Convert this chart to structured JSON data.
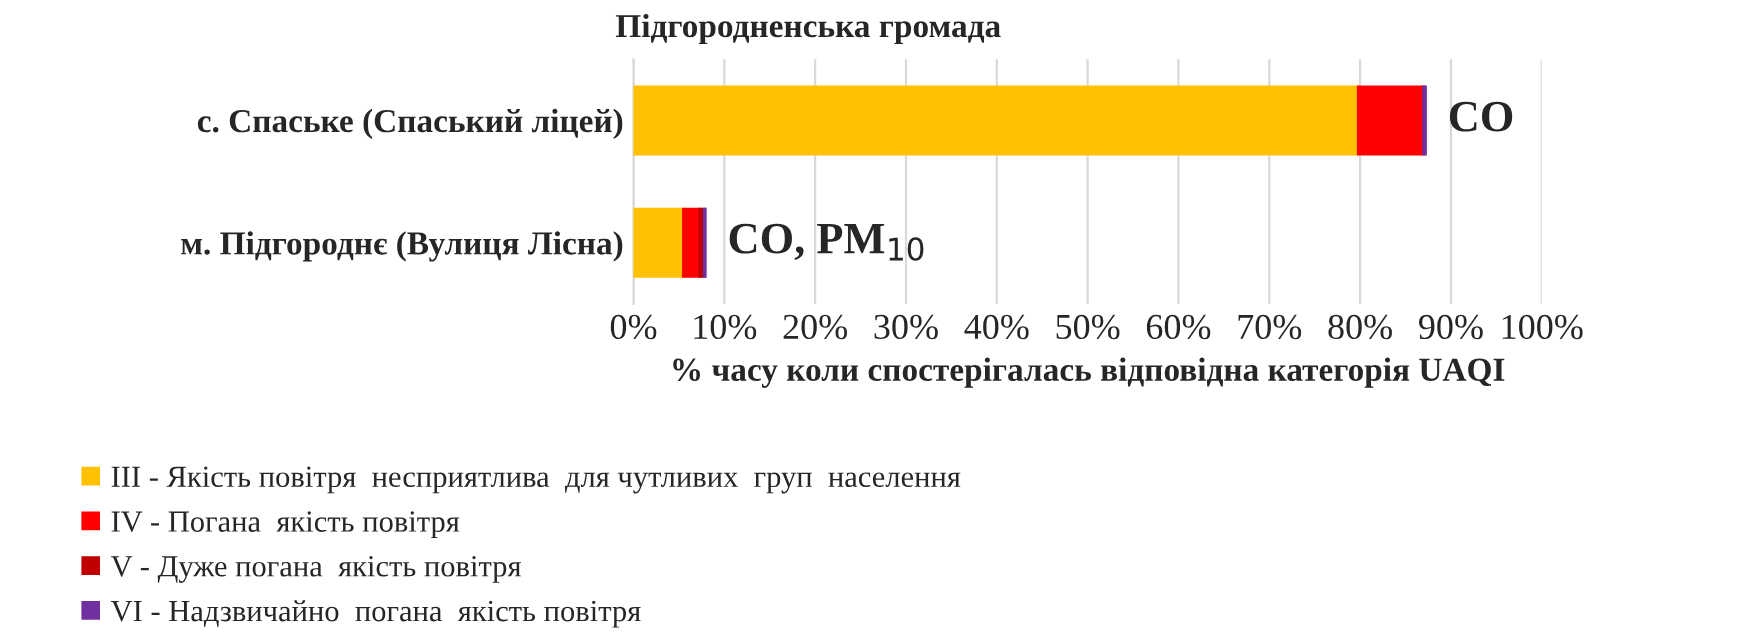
{
  "chart_data": {
    "type": "bar",
    "orientation": "horizontal",
    "stacked": true,
    "title": "Підгородненська громада",
    "xlabel": "% часу коли спостерігалась відповідна категорія UAQI",
    "categories": [
      "с. Спаське (Спаський ліцей)",
      "м. Підгороднє (Вулиця Лісна)"
    ],
    "series": [
      {
        "name": "ІІІ - Якість повітря  несприятлива  для чутливих  груп  населення",
        "color": "#ffc000",
        "values": [
          79.8,
          5.5
        ]
      },
      {
        "name": "IV - Погана  якість повітря",
        "color": "#ff0000",
        "values": [
          7.2,
          1.8
        ]
      },
      {
        "name": "V - Дуже погана  якість повітря",
        "color": "#c00000",
        "values": [
          0,
          0.5
        ]
      },
      {
        "name": "VI - Надзвичайно  погана  якість повітря",
        "color": "#7030a0",
        "values": [
          0.2,
          0.1
        ]
      }
    ],
    "xlim": [
      0,
      100
    ],
    "xticks": [
      {
        "value": 0,
        "label": "0%"
      },
      {
        "value": 10,
        "label": "10%"
      },
      {
        "value": 20,
        "label": "20%"
      },
      {
        "value": 30,
        "label": "30%"
      },
      {
        "value": 40,
        "label": "40%"
      },
      {
        "value": 50,
        "label": "50%"
      },
      {
        "value": 60,
        "label": "60%"
      },
      {
        "value": 70,
        "label": "70%"
      },
      {
        "value": 80,
        "label": "80%"
      },
      {
        "value": 90,
        "label": "90%"
      },
      {
        "value": 100,
        "label": "100%"
      }
    ],
    "annotations": [
      {
        "text": "CO",
        "x": 87.2,
        "y": "с. Спаське (Спаський ліцей)"
      },
      {
        "text": "CO, PM$_{10}$",
        "x": 7.9,
        "y": "м. Підгороднє (Вулиця Лісна)"
      }
    ],
    "grid": "x",
    "legend": "bottom left"
  }
}
